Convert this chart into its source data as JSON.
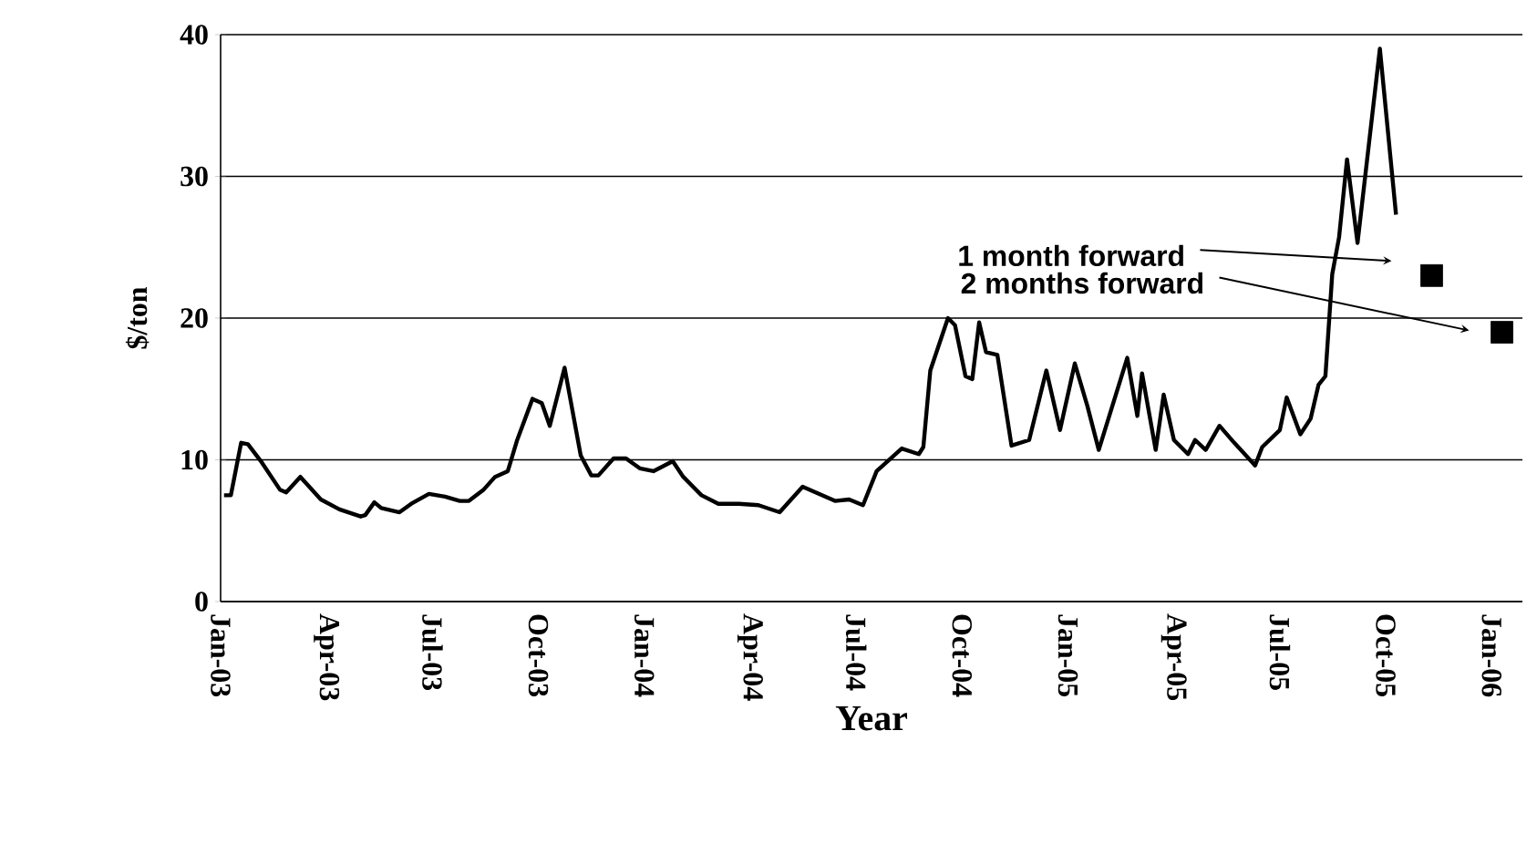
{
  "chart_data": {
    "type": "line",
    "xlabel": "Year",
    "ylabel": "$/ton",
    "xlim": [
      "2003-01-01",
      "2006-01-28"
    ],
    "ylim": [
      0,
      40
    ],
    "yticks": [
      0,
      10,
      20,
      30,
      40
    ],
    "xticks": [
      {
        "value": "2003-01-01",
        "label": "Jan-03"
      },
      {
        "value": "2003-04-01",
        "label": "Apr-03"
      },
      {
        "value": "2003-07-01",
        "label": "Jul-03"
      },
      {
        "value": "2003-10-01",
        "label": "Oct-03"
      },
      {
        "value": "2004-01-01",
        "label": "Jan-04"
      },
      {
        "value": "2004-04-01",
        "label": "Apr-04"
      },
      {
        "value": "2004-07-01",
        "label": "Jul-04"
      },
      {
        "value": "2004-10-01",
        "label": "Oct-04"
      },
      {
        "value": "2005-01-01",
        "label": "Jan-05"
      },
      {
        "value": "2005-04-01",
        "label": "Apr-05"
      },
      {
        "value": "2005-07-01",
        "label": "Jul-05"
      },
      {
        "value": "2005-10-01",
        "label": "Oct-05"
      },
      {
        "value": "2006-01-01",
        "label": "Jan-06"
      }
    ],
    "grid": "y",
    "series": [
      {
        "color": "#000000",
        "marker": "none",
        "x": [
          "2003-01-04",
          "2003-01-10",
          "2003-01-19",
          "2003-01-25",
          "2003-02-05",
          "2003-02-20",
          "2003-02-25",
          "2003-03-09",
          "2003-03-27",
          "2003-04-12",
          "2003-04-30",
          "2003-05-04",
          "2003-05-12",
          "2003-05-18",
          "2003-06-03",
          "2003-06-13",
          "2003-06-28",
          "2003-07-12",
          "2003-07-25",
          "2003-08-02",
          "2003-08-15",
          "2003-08-25",
          "2003-09-05",
          "2003-09-13",
          "2003-09-26",
          "2003-10-04",
          "2003-10-11",
          "2003-10-24",
          "2003-11-07",
          "2003-11-16",
          "2003-11-22",
          "2003-12-05",
          "2003-12-16",
          "2003-12-28",
          "2004-01-09",
          "2004-01-26",
          "2004-02-04",
          "2004-02-19",
          "2004-03-04",
          "2004-03-22",
          "2004-04-08",
          "2004-04-26",
          "2004-05-16",
          "2004-06-13",
          "2004-06-25",
          "2004-07-07",
          "2004-07-19",
          "2004-08-10",
          "2004-08-25",
          "2004-08-29",
          "2004-09-04",
          "2004-09-19",
          "2004-09-25",
          "2004-10-04",
          "2004-10-10",
          "2004-10-16",
          "2004-10-22",
          "2004-11-01",
          "2004-11-13",
          "2004-11-28",
          "2004-12-13",
          "2004-12-25",
          "2005-01-07",
          "2005-01-18",
          "2005-01-28",
          "2005-02-20",
          "2005-02-28",
          "2005-03-04",
          "2005-03-16",
          "2005-03-23",
          "2005-04-01",
          "2005-04-13",
          "2005-04-19",
          "2005-04-28",
          "2005-05-10",
          "2005-05-23",
          "2005-06-10",
          "2005-06-16",
          "2005-07-01",
          "2005-07-07",
          "2005-07-19",
          "2005-07-28",
          "2005-08-04",
          "2005-08-10",
          "2005-08-16",
          "2005-08-22",
          "2005-08-29",
          "2005-09-07",
          "2005-09-26",
          "2005-10-10"
        ],
        "values": [
          7.5,
          7.5,
          11.2,
          11.1,
          9.9,
          7.9,
          7.7,
          8.8,
          7.2,
          6.5,
          6.0,
          6.1,
          7.0,
          6.6,
          6.3,
          6.9,
          7.6,
          7.4,
          7.1,
          7.1,
          7.9,
          8.8,
          9.2,
          11.4,
          14.3,
          14.0,
          12.4,
          16.5,
          10.3,
          8.9,
          8.9,
          10.1,
          10.1,
          9.4,
          9.2,
          9.9,
          8.8,
          7.5,
          6.9,
          6.9,
          6.8,
          6.3,
          8.1,
          7.1,
          7.2,
          6.8,
          9.2,
          10.8,
          10.4,
          10.9,
          16.3,
          20.0,
          19.5,
          15.9,
          15.7,
          19.7,
          17.6,
          17.4,
          11.0,
          11.4,
          16.3,
          12.1,
          16.8,
          13.8,
          10.7,
          17.2,
          13.1,
          16.1,
          10.7,
          14.6,
          11.4,
          10.4,
          11.4,
          10.7,
          12.4,
          11.2,
          9.6,
          10.9,
          12.1,
          14.4,
          11.8,
          12.9,
          15.3,
          15.9,
          23.1,
          25.7,
          31.2,
          25.3,
          39.0,
          27.3
        ]
      },
      {
        "type": "scatter",
        "color": "#000000",
        "marker": "square",
        "x": [
          "2005-11-10",
          "2006-01-10"
        ],
        "values": [
          23.0,
          19.0
        ]
      }
    ],
    "annotations": [
      "1 month forward",
      "2 months forward"
    ]
  }
}
